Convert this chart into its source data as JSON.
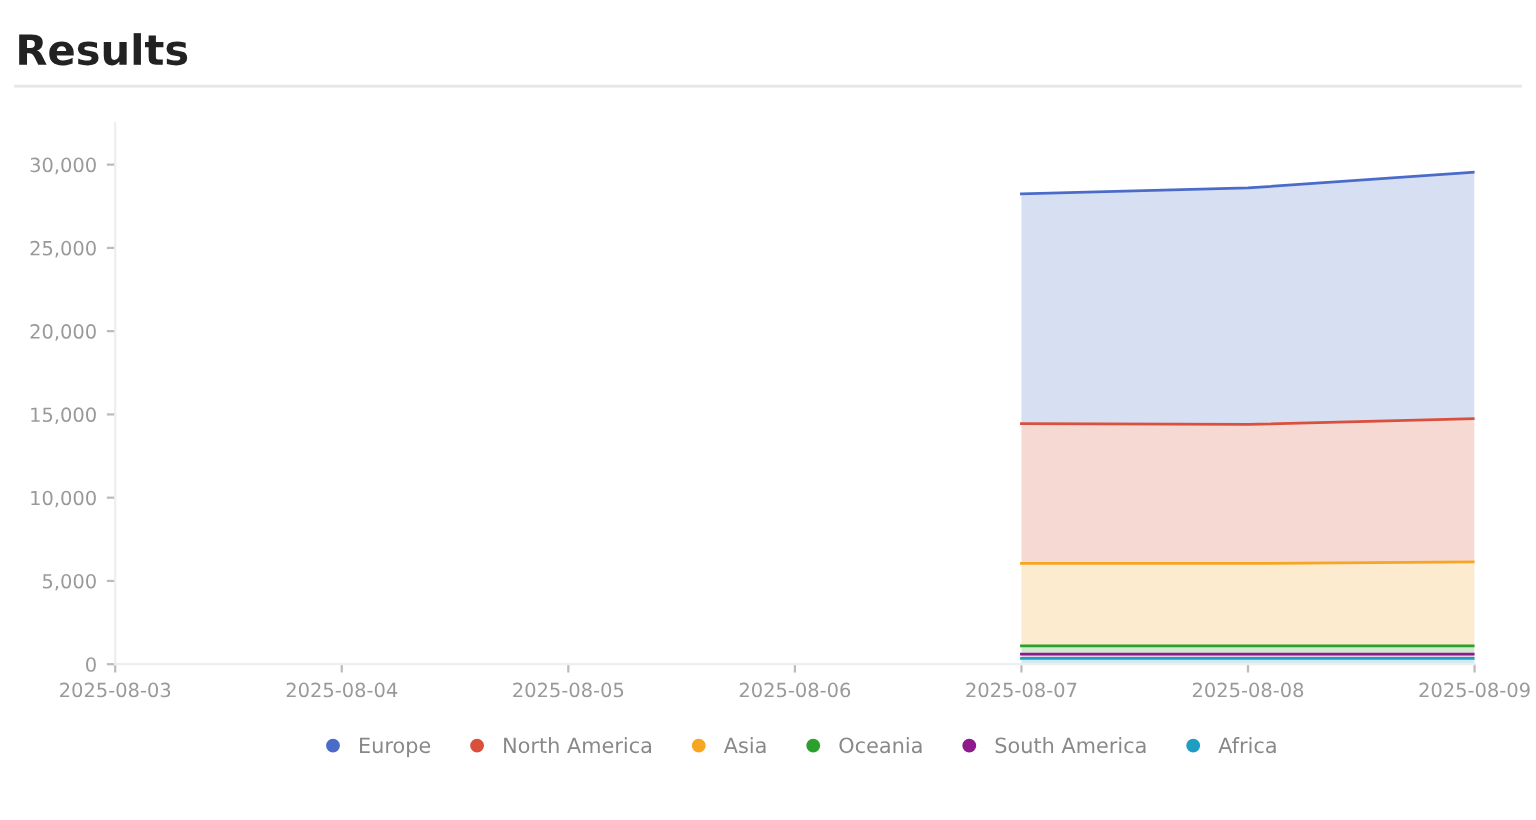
{
  "chart_data": {
    "type": "area",
    "title": "Results",
    "stacked": true,
    "x": [
      "2025-08-07",
      "2025-08-08",
      "2025-08-09"
    ],
    "series": [
      {
        "name": "Africa",
        "color": "#1f9ec4",
        "values": [
          350,
          350,
          350
        ]
      },
      {
        "name": "South America",
        "color": "#8e1a8e",
        "values": [
          250,
          250,
          250
        ]
      },
      {
        "name": "Oceania",
        "color": "#2ca02c",
        "values": [
          500,
          500,
          500
        ]
      },
      {
        "name": "Asia",
        "color": "#f5a623",
        "values": [
          4950,
          4950,
          5050
        ]
      },
      {
        "name": "North America",
        "color": "#d9503c",
        "values": [
          8400,
          8350,
          8600
        ]
      },
      {
        "name": "Europe",
        "color": "#4a6cc8",
        "values": [
          13800,
          14200,
          14800
        ]
      }
    ],
    "xlim": [
      "2025-08-03",
      "2025-08-09"
    ],
    "xticks": [
      "2025-08-03",
      "2025-08-04",
      "2025-08-05",
      "2025-08-06",
      "2025-08-07",
      "2025-08-08",
      "2025-08-09"
    ],
    "ylim": [
      0,
      32500
    ],
    "yticks": [
      {
        "value": 0,
        "label": "0"
      },
      {
        "value": 5000,
        "label": "5,000"
      },
      {
        "value": 10000,
        "label": "10,000"
      },
      {
        "value": 15000,
        "label": "15,000"
      },
      {
        "value": 20000,
        "label": "20,000"
      },
      {
        "value": 25000,
        "label": "25,000"
      },
      {
        "value": 30000,
        "label": "30,000"
      }
    ],
    "legend": "bottom",
    "grid": false
  }
}
